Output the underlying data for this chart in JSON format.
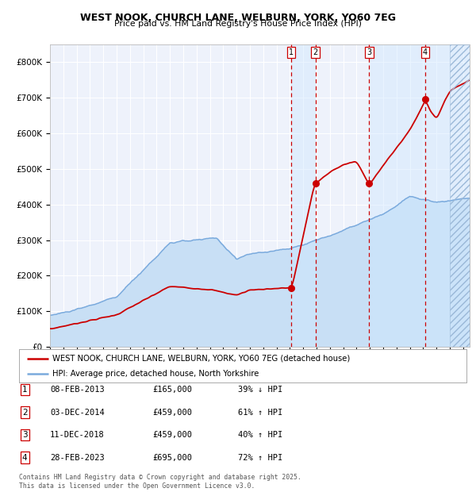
{
  "title1": "WEST NOOK, CHURCH LANE, WELBURN, YORK, YO60 7EG",
  "title2": "Price paid vs. HM Land Registry's House Price Index (HPI)",
  "xlim_start": 1995.0,
  "xlim_end": 2026.5,
  "ylim": [
    0,
    850000
  ],
  "yticks": [
    0,
    100000,
    200000,
    300000,
    400000,
    500000,
    600000,
    700000,
    800000
  ],
  "ytick_labels": [
    "£0",
    "£100K",
    "£200K",
    "£300K",
    "£400K",
    "£500K",
    "£600K",
    "£700K",
    "£800K"
  ],
  "sale_dates_num": [
    2013.1,
    2014.92,
    2018.95,
    2023.16
  ],
  "sale_prices": [
    165000,
    459000,
    459000,
    695000
  ],
  "sale_labels": [
    "1",
    "2",
    "3",
    "4"
  ],
  "sale_color": "#cc0000",
  "hpi_color": "#7aaadd",
  "hpi_fill_color": "#c8dff5",
  "legend_items": [
    "WEST NOOK, CHURCH LANE, WELBURN, YORK, YO60 7EG (detached house)",
    "HPI: Average price, detached house, North Yorkshire"
  ],
  "table_entries": [
    [
      "1",
      "08-FEB-2013",
      "£165,000",
      "39% ↓ HPI"
    ],
    [
      "2",
      "03-DEC-2014",
      "£459,000",
      "61% ↑ HPI"
    ],
    [
      "3",
      "11-DEC-2018",
      "£459,000",
      "40% ↑ HPI"
    ],
    [
      "4",
      "28-FEB-2023",
      "£695,000",
      "72% ↑ HPI"
    ]
  ],
  "footer": "Contains HM Land Registry data © Crown copyright and database right 2025.\nThis data is licensed under the Open Government Licence v3.0.",
  "background_color": "#ffffff",
  "plot_bg_color": "#eef2fb"
}
